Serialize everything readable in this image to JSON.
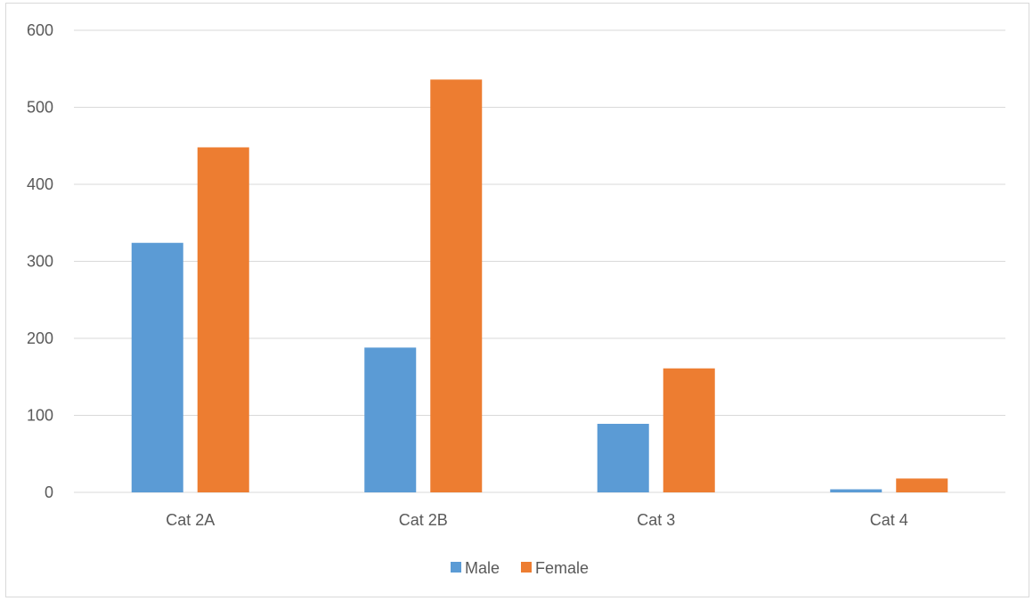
{
  "chart_data": {
    "type": "bar",
    "title": "",
    "xlabel": "",
    "ylabel": "",
    "categories": [
      "Cat 2A",
      "Cat 2B",
      "Cat 3",
      "Cat 4"
    ],
    "series": [
      {
        "name": "Male",
        "color": "#5b9bd5",
        "values": [
          324,
          188,
          89,
          4
        ]
      },
      {
        "name": "Female",
        "color": "#ed7d31",
        "values": [
          448,
          536,
          161,
          18
        ]
      }
    ],
    "ylim": [
      0,
      600
    ],
    "yticks": [
      0,
      100,
      200,
      300,
      400,
      500,
      600
    ],
    "grid": true,
    "legend": "bottom-center",
    "gridline_color": "#d9d9d9",
    "axis_color": "#d9d9d9",
    "text_color": "#595959"
  }
}
